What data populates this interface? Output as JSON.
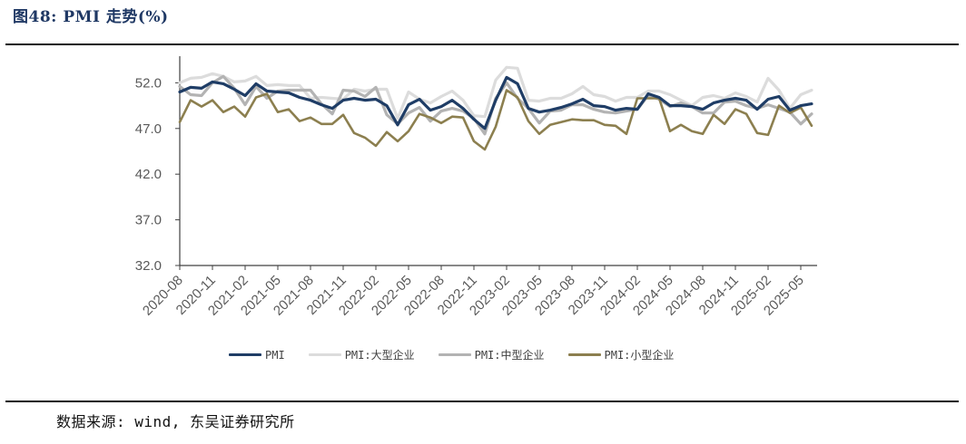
{
  "title": "图48:  PMI 走势(%)",
  "source": "数据来源: wind, 东吴证券研究所",
  "legend": [
    {
      "label": "PMI",
      "color": "#1f3d66"
    },
    {
      "label": "PMI:大型企业",
      "color": "#dcdcdc"
    },
    {
      "label": "PMI:中型企业",
      "color": "#b3b3b3"
    },
    {
      "label": "PMI:小型企业",
      "color": "#8c7f4f"
    }
  ],
  "chart_data": {
    "type": "line",
    "title": "PMI 走势(%)",
    "xlabel": "",
    "ylabel": "",
    "ylim": [
      32.0,
      54.0
    ],
    "yticks": [
      "52.0",
      "47.0",
      "42.0",
      "37.0",
      "32.0"
    ],
    "ytick_values": [
      52.0,
      47.0,
      42.0,
      37.0,
      32.0
    ],
    "xtick_labels": [
      "2020-08",
      "2020-11",
      "2021-02",
      "2021-05",
      "2021-08",
      "2021-11",
      "2022-02",
      "2022-05",
      "2022-08",
      "2022-11",
      "2023-02",
      "2023-05",
      "2023-08",
      "2023-11",
      "2024-02",
      "2024-05",
      "2024-08",
      "2024-11",
      "2025-02",
      "2025-05"
    ],
    "grid": false,
    "legend_position": "bottom",
    "x": [
      "2020-08",
      "2020-09",
      "2020-10",
      "2020-11",
      "2020-12",
      "2021-01",
      "2021-02",
      "2021-03",
      "2021-04",
      "2021-05",
      "2021-06",
      "2021-07",
      "2021-08",
      "2021-09",
      "2021-10",
      "2021-11",
      "2021-12",
      "2022-01",
      "2022-02",
      "2022-03",
      "2022-04",
      "2022-05",
      "2022-06",
      "2022-07",
      "2022-08",
      "2022-09",
      "2022-10",
      "2022-11",
      "2022-12",
      "2023-01",
      "2023-02",
      "2023-03",
      "2023-04",
      "2023-05",
      "2023-06",
      "2023-07",
      "2023-08",
      "2023-09",
      "2023-10",
      "2023-11",
      "2023-12",
      "2024-01",
      "2024-02",
      "2024-03",
      "2024-04",
      "2024-05",
      "2024-06",
      "2024-07",
      "2024-08",
      "2024-09",
      "2024-10",
      "2024-11",
      "2024-12",
      "2025-01",
      "2025-02",
      "2025-03",
      "2025-04",
      "2025-05",
      "2025-06"
    ],
    "series": [
      {
        "name": "PMI",
        "color": "#1f3d66",
        "values": [
          51.0,
          51.5,
          51.4,
          52.1,
          51.9,
          51.3,
          50.6,
          51.9,
          51.1,
          51.0,
          50.9,
          50.4,
          50.1,
          49.6,
          49.2,
          50.1,
          50.3,
          50.1,
          50.2,
          49.5,
          47.4,
          49.6,
          50.2,
          49.0,
          49.4,
          50.1,
          49.2,
          48.0,
          47.0,
          50.1,
          52.6,
          51.9,
          49.2,
          48.8,
          49.0,
          49.3,
          49.7,
          50.2,
          49.5,
          49.4,
          49.0,
          49.2,
          49.1,
          50.8,
          50.4,
          49.5,
          49.5,
          49.4,
          49.1,
          49.8,
          50.1,
          50.3,
          50.1,
          49.1,
          50.2,
          50.5,
          49.0,
          49.5,
          49.7
        ]
      },
      {
        "name": "PMI:大型企业",
        "color": "#dcdcdc",
        "values": [
          52.0,
          52.5,
          52.6,
          53.0,
          52.7,
          52.1,
          52.2,
          52.7,
          51.7,
          51.8,
          51.7,
          51.7,
          50.3,
          50.4,
          50.3,
          50.2,
          51.3,
          51.1,
          51.3,
          51.3,
          48.1,
          51.0,
          50.2,
          49.8,
          50.5,
          51.1,
          50.1,
          48.4,
          48.3,
          52.3,
          53.7,
          53.6,
          50.1,
          50.0,
          50.3,
          50.3,
          50.8,
          51.6,
          50.7,
          50.5,
          50.0,
          50.4,
          50.4,
          51.1,
          51.1,
          50.7,
          50.1,
          49.5,
          50.4,
          50.6,
          50.3,
          50.9,
          50.5,
          49.9,
          52.5,
          51.2,
          49.2,
          50.7,
          51.2
        ]
      },
      {
        "name": "PMI:中型企业",
        "color": "#b3b3b3",
        "values": [
          51.6,
          50.7,
          50.6,
          52.0,
          52.7,
          51.4,
          49.6,
          51.6,
          50.3,
          51.1,
          51.2,
          51.2,
          51.2,
          49.7,
          48.6,
          51.2,
          51.1,
          50.5,
          51.5,
          48.5,
          47.5,
          48.7,
          49.3,
          47.8,
          48.9,
          49.2,
          48.9,
          48.1,
          46.4,
          50.3,
          52.0,
          50.3,
          49.2,
          47.6,
          48.9,
          49.0,
          49.6,
          49.6,
          49.1,
          48.8,
          48.7,
          48.9,
          49.1,
          50.6,
          50.2,
          49.4,
          49.8,
          49.4,
          48.7,
          48.7,
          49.9,
          50.0,
          49.5,
          49.2,
          49.6,
          49.2,
          48.8,
          47.5,
          48.6
        ]
      },
      {
        "name": "PMI:小型企业",
        "color": "#8c7f4f",
        "values": [
          47.7,
          50.1,
          49.4,
          50.1,
          48.8,
          49.4,
          48.3,
          50.4,
          50.8,
          48.8,
          49.1,
          47.8,
          48.2,
          47.5,
          47.5,
          48.5,
          46.5,
          46.0,
          45.1,
          46.6,
          45.6,
          46.7,
          48.6,
          48.2,
          47.6,
          48.3,
          48.2,
          45.6,
          44.7,
          47.2,
          51.2,
          50.4,
          47.8,
          46.4,
          47.4,
          47.7,
          48.0,
          47.9,
          47.9,
          47.4,
          47.3,
          46.4,
          50.3,
          50.3,
          50.3,
          46.7,
          47.4,
          46.7,
          46.4,
          48.5,
          47.5,
          49.1,
          48.6,
          46.5,
          46.3,
          49.5,
          48.7,
          49.3,
          47.3
        ]
      }
    ]
  }
}
